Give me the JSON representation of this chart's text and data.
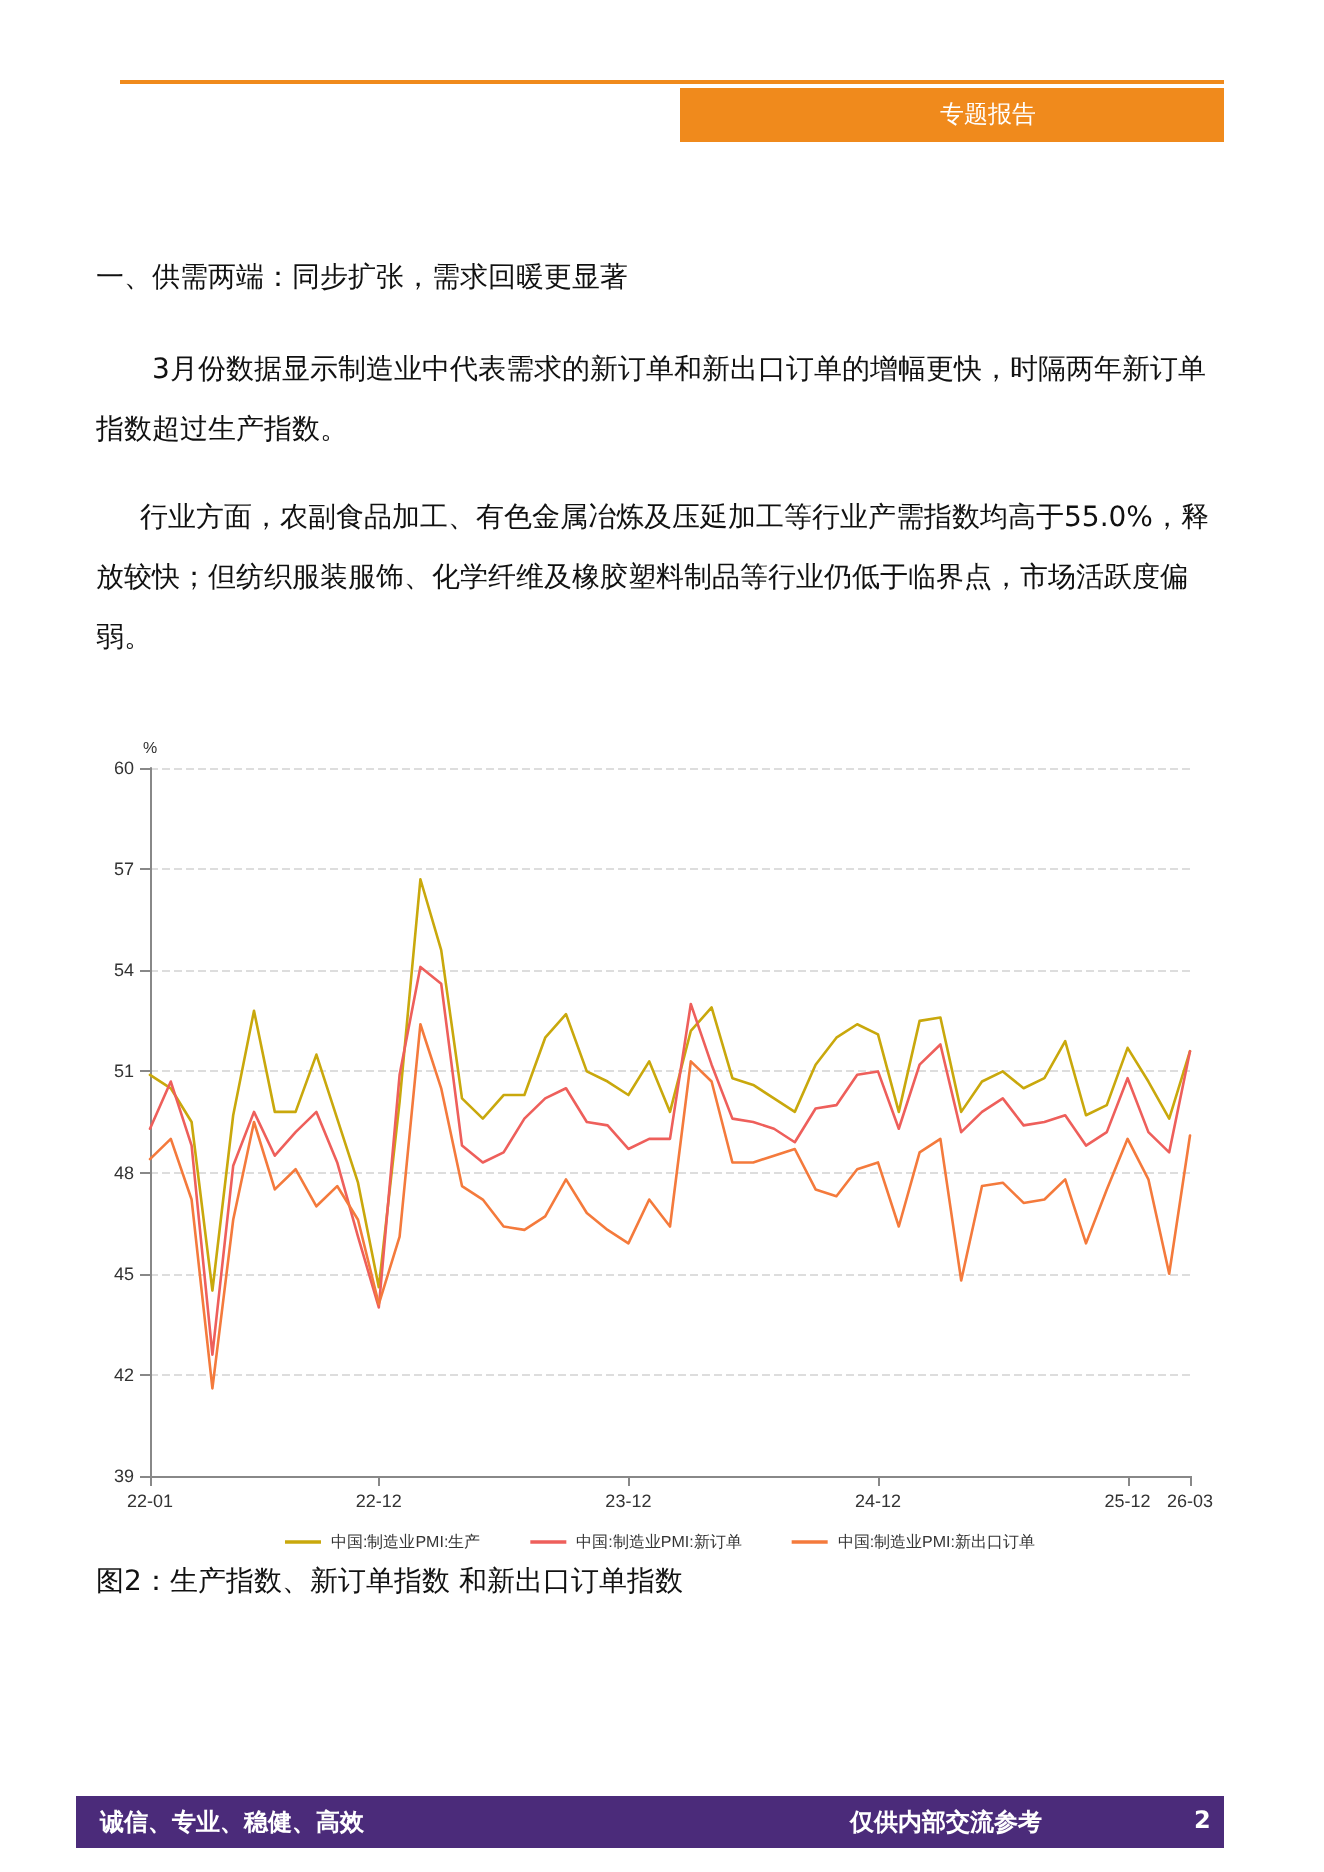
{
  "chart_data": {
    "type": "line",
    "ylabel": "%",
    "categories": [
      "22-01",
      null,
      null,
      null,
      null,
      null,
      null,
      null,
      null,
      null,
      null,
      "22-12",
      null,
      null,
      null,
      null,
      null,
      null,
      null,
      null,
      null,
      null,
      null,
      "23-12",
      null,
      null,
      null,
      null,
      null,
      null,
      null,
      null,
      null,
      null,
      null,
      "24-12",
      null,
      null,
      null,
      null,
      null,
      null,
      null,
      null,
      null,
      null,
      null,
      "25-12",
      null,
      null,
      "26-03"
    ],
    "series": [
      {
        "name": "中国:制造业PMI:生产",
        "color": "#c9a80c",
        "values": [
          50.9,
          50.5,
          49.5,
          44.5,
          49.7,
          52.8,
          49.8,
          49.8,
          51.5,
          49.6,
          47.7,
          44.6,
          50.1,
          56.7,
          54.6,
          50.2,
          49.6,
          50.3,
          50.3,
          52.0,
          52.7,
          51.0,
          50.7,
          50.3,
          51.3,
          49.8,
          52.2,
          52.9,
          50.8,
          50.6,
          50.2,
          49.8,
          51.2,
          52.0,
          52.4,
          52.1,
          49.8,
          52.5,
          52.6,
          49.8,
          50.7,
          51.0,
          50.5,
          50.8,
          51.9,
          49.7,
          50.0,
          51.7,
          50.7,
          49.6,
          51.6
        ]
      },
      {
        "name": "中国:制造业PMI:新订单",
        "color": "#ee5f5b",
        "values": [
          49.3,
          50.7,
          48.8,
          42.6,
          48.2,
          49.8,
          48.5,
          49.2,
          49.8,
          48.3,
          46.1,
          44.0,
          50.9,
          54.1,
          53.6,
          48.8,
          48.3,
          48.6,
          49.6,
          50.2,
          50.5,
          49.5,
          49.4,
          48.7,
          49.0,
          49.0,
          53.0,
          51.2,
          49.6,
          49.5,
          49.3,
          48.9,
          49.9,
          50.0,
          50.9,
          51.0,
          49.3,
          51.2,
          51.8,
          49.2,
          49.8,
          50.2,
          49.4,
          49.5,
          49.7,
          48.8,
          49.2,
          50.8,
          49.2,
          48.6,
          51.6
        ]
      },
      {
        "name": "中国:制造业PMI:新出口订单",
        "color": "#f47a3c",
        "values": [
          48.4,
          49.0,
          47.2,
          41.6,
          46.6,
          49.5,
          47.5,
          48.1,
          47.0,
          47.6,
          46.6,
          44.1,
          46.1,
          52.4,
          50.5,
          47.6,
          47.2,
          46.4,
          46.3,
          46.7,
          47.8,
          46.8,
          46.3,
          45.9,
          47.2,
          46.4,
          51.3,
          50.7,
          48.3,
          48.3,
          48.5,
          48.7,
          47.5,
          47.3,
          48.1,
          48.3,
          46.4,
          48.6,
          49.0,
          44.8,
          47.6,
          47.7,
          47.1,
          47.2,
          47.8,
          45.9,
          47.5,
          49.0,
          47.8,
          45.0,
          49.1
        ]
      }
    ],
    "ylim": [
      39,
      60
    ],
    "yticks": [
      39,
      42,
      45,
      48,
      51,
      54,
      57,
      60
    ],
    "grid": "y",
    "legend": "bottom",
    "marker": "none",
    "line_style": "solid",
    "annotations": [
      "专题报告",
      "一、供需两端：同步扩张，需求回暖更显著",
      "3月份数据显示制造业中代表需求的新订单和新出口订单的增幅更快，时隔两年新订单指数超过生产指数。",
      "行业方面，农副食品加工、有色金属冶炼及压延加工等行业产需指数均高于55.0%，释放较快；但纺织服装服饰、化学纤维及橡胶塑料制品等行业仍低于临界点，市场活跃度偏弱。",
      "图2：生产指数、新订单指数 和新出口订单指数",
      "诚信、专业、稳健、高效",
      "仅供内部交流参考",
      "2"
    ]
  }
}
